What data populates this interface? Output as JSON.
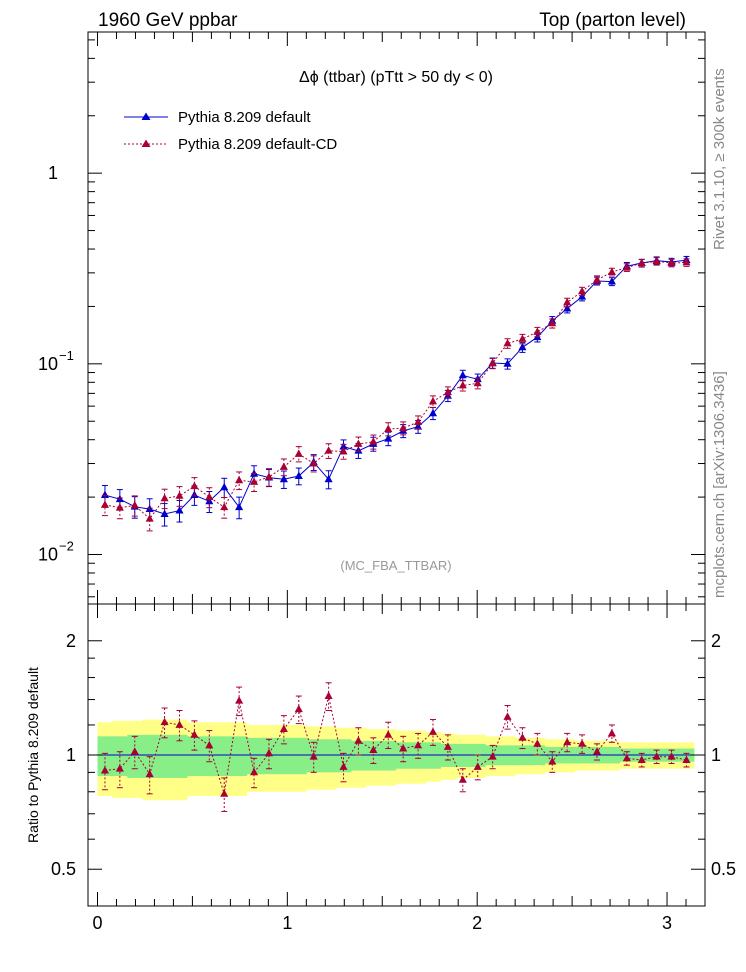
{
  "header": {
    "left": "1960 GeV ppbar",
    "right": "Top (parton level)"
  },
  "side_text": {
    "rivet": "Rivet 3.1.10, ≥ 300k events",
    "mcplots": "mcplots.cern.ch [arXiv:1306.3436]"
  },
  "colors": {
    "default": "#0000cc",
    "cd": "#aa0033",
    "band_yellow": "#ffff88",
    "band_green": "#88ee88"
  },
  "chart_data": [
    {
      "type": "line",
      "title": "Δϕ (ttbar) (pTtt > 50 dy < 0)",
      "watermark": "(MC_FBA_TTBAR)",
      "yscale": "log",
      "xlim": [
        -0.05,
        3.2
      ],
      "ylim": [
        0.0055,
        5.5
      ],
      "yticks": [
        {
          "value": 0.01,
          "label": "10",
          "exp": "−2"
        },
        {
          "value": 0.1,
          "label": "10",
          "exp": "−1"
        },
        {
          "value": 1,
          "label": "1",
          "exp": ""
        }
      ],
      "legend_position": "top-left",
      "x": [
        0.0393,
        0.1178,
        0.1963,
        0.2749,
        0.3534,
        0.432,
        0.5105,
        0.589,
        0.6676,
        0.7461,
        0.8247,
        0.9032,
        0.9817,
        1.0603,
        1.1388,
        1.2174,
        1.2959,
        1.3744,
        1.453,
        1.5315,
        1.6101,
        1.6886,
        1.7671,
        1.8457,
        1.9242,
        2.0028,
        2.0813,
        2.1598,
        2.2384,
        2.3169,
        2.3955,
        2.474,
        2.5525,
        2.6311,
        2.7096,
        2.7882,
        2.8667,
        2.9452,
        3.0238,
        3.1023
      ],
      "series": [
        {
          "name": "Pythia 8.209 default",
          "values": [
            0.0205,
            0.0195,
            0.0178,
            0.0173,
            0.0163,
            0.017,
            0.0205,
            0.019,
            0.0225,
            0.0177,
            0.0265,
            0.0253,
            0.0248,
            0.0258,
            0.0305,
            0.0248,
            0.0368,
            0.035,
            0.038,
            0.0405,
            0.0445,
            0.0468,
            0.055,
            0.068,
            0.087,
            0.083,
            0.101,
            0.1,
            0.122,
            0.138,
            0.168,
            0.195,
            0.225,
            0.272,
            0.27,
            0.325,
            0.338,
            0.348,
            0.342,
            0.35
          ],
          "errors": [
            0.0025,
            0.0024,
            0.0023,
            0.0023,
            0.0022,
            0.0022,
            0.0024,
            0.0024,
            0.0026,
            0.0023,
            0.0027,
            0.0026,
            0.0026,
            0.0026,
            0.0029,
            0.0027,
            0.0031,
            0.0031,
            0.0032,
            0.0033,
            0.0035,
            0.0036,
            0.004,
            0.0046,
            0.0055,
            0.0054,
            0.0063,
            0.0062,
            0.0072,
            0.0078,
            0.009,
            0.0101,
            0.0112,
            0.013,
            0.0129,
            0.015,
            0.0154,
            0.0157,
            0.0155,
            0.0158
          ]
        },
        {
          "name": "Pythia 8.209 default-CD",
          "values": [
            0.0182,
            0.0176,
            0.0181,
            0.0154,
            0.0197,
            0.0203,
            0.0228,
            0.02,
            0.0177,
            0.0245,
            0.024,
            0.0255,
            0.0288,
            0.0337,
            0.03,
            0.035,
            0.0347,
            0.038,
            0.039,
            0.0455,
            0.046,
            0.0495,
            0.0635,
            0.071,
            0.077,
            0.079,
            0.1005,
            0.128,
            0.135,
            0.147,
            0.163,
            0.21,
            0.24,
            0.276,
            0.303,
            0.32,
            0.337,
            0.345,
            0.338,
            0.34
          ],
          "errors": [
            0.0022,
            0.0022,
            0.0022,
            0.0021,
            0.0023,
            0.0024,
            0.0025,
            0.0024,
            0.0022,
            0.0026,
            0.0026,
            0.0027,
            0.0029,
            0.0031,
            0.0029,
            0.0031,
            0.0031,
            0.0033,
            0.0033,
            0.0036,
            0.0036,
            0.0038,
            0.0044,
            0.0047,
            0.005,
            0.0051,
            0.0062,
            0.0074,
            0.0077,
            0.0083,
            0.009,
            0.0108,
            0.012,
            0.0133,
            0.0142,
            0.0149,
            0.0155,
            0.0157,
            0.0154,
            0.0155
          ]
        }
      ]
    },
    {
      "type": "line",
      "ylabel": "Ratio to Pythia 8.209 default",
      "yscale": "log",
      "xlim": [
        -0.05,
        3.2
      ],
      "ylim": [
        0.4,
        2.5
      ],
      "xticks": [
        0,
        1,
        2,
        3
      ],
      "yticks": [
        0.5,
        1,
        2
      ],
      "band_yellow_half": [
        0.22,
        0.23,
        0.23,
        0.24,
        0.24,
        0.24,
        0.22,
        0.22,
        0.22,
        0.22,
        0.2,
        0.2,
        0.2,
        0.2,
        0.19,
        0.19,
        0.18,
        0.18,
        0.17,
        0.17,
        0.16,
        0.16,
        0.15,
        0.14,
        0.13,
        0.13,
        0.12,
        0.12,
        0.11,
        0.11,
        0.1,
        0.1,
        0.09,
        0.09,
        0.09,
        0.08,
        0.08,
        0.08,
        0.08,
        0.08
      ],
      "band_green_half": [
        0.12,
        0.12,
        0.13,
        0.13,
        0.13,
        0.13,
        0.12,
        0.12,
        0.12,
        0.12,
        0.11,
        0.11,
        0.11,
        0.11,
        0.1,
        0.1,
        0.1,
        0.09,
        0.09,
        0.09,
        0.08,
        0.08,
        0.08,
        0.07,
        0.07,
        0.07,
        0.06,
        0.06,
        0.06,
        0.06,
        0.05,
        0.05,
        0.05,
        0.05,
        0.05,
        0.04,
        0.04,
        0.04,
        0.04,
        0.04
      ],
      "ratio_cd": [
        0.91,
        0.92,
        1.02,
        0.89,
        1.22,
        1.2,
        1.13,
        1.06,
        0.79,
        1.39,
        0.9,
        1.01,
        1.17,
        1.32,
        0.99,
        1.43,
        0.93,
        1.09,
        1.03,
        1.13,
        1.04,
        1.06,
        1.15,
        1.05,
        0.86,
        0.93,
        0.99,
        1.26,
        1.11,
        1.07,
        0.96,
        1.08,
        1.07,
        1.02,
        1.14,
        0.98,
        0.97,
        0.99,
        0.99,
        0.97
      ],
      "ratio_cd_err": [
        0.1,
        0.1,
        0.1,
        0.1,
        0.11,
        0.11,
        0.1,
        0.1,
        0.08,
        0.12,
        0.08,
        0.09,
        0.1,
        0.11,
        0.09,
        0.12,
        0.08,
        0.09,
        0.08,
        0.09,
        0.08,
        0.08,
        0.09,
        0.08,
        0.06,
        0.07,
        0.07,
        0.09,
        0.07,
        0.07,
        0.06,
        0.06,
        0.06,
        0.05,
        0.06,
        0.04,
        0.04,
        0.04,
        0.04,
        0.04
      ]
    }
  ]
}
